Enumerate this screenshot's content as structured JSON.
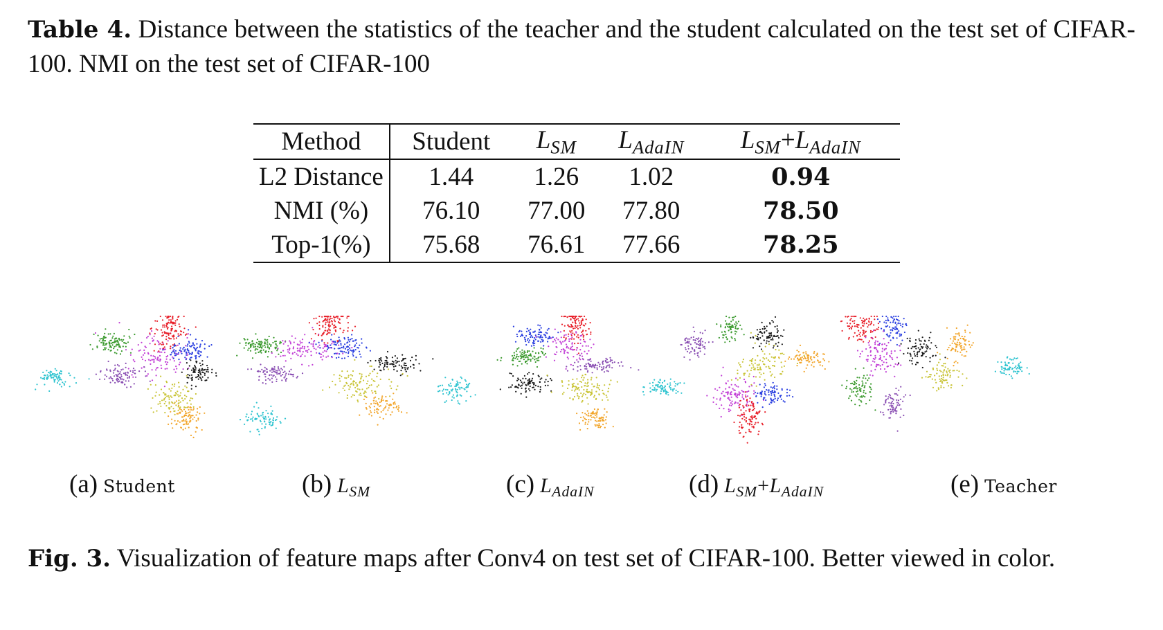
{
  "table_caption": {
    "label": "Table 4.",
    "text": "Distance between the statistics of the teacher and the student calculated on the test set of CIFAR-100. NMI on the test set of CIFAR-100"
  },
  "table": {
    "headers": [
      "Method",
      "Student",
      "LSM",
      "LAdaIN",
      "LSM+LAdaIN"
    ],
    "header_parts": {
      "lsm": {
        "base": "L",
        "sub": "SM"
      },
      "ladain": {
        "base": "L",
        "sub": "AdaIN"
      },
      "plus": "+"
    },
    "rows": [
      {
        "label": "L2 Distance",
        "values": [
          "1.44",
          "1.26",
          "1.02",
          "0.94"
        ]
      },
      {
        "label": "NMI (%)",
        "values": [
          "76.10",
          "77.00",
          "77.80",
          "78.50"
        ]
      },
      {
        "label": "Top-1(%)",
        "values": [
          "75.68",
          "76.61",
          "77.66",
          "78.25"
        ]
      }
    ]
  },
  "subfigures": [
    {
      "tag": "(a)",
      "name": "Student"
    },
    {
      "tag": "(b)",
      "name": "LSM"
    },
    {
      "tag": "(c)",
      "name": "LAdaIN"
    },
    {
      "tag": "(d)",
      "name": "LSM+LAdaIN"
    },
    {
      "tag": "(e)",
      "name": "Teacher"
    }
  ],
  "cluster_colors": {
    "cyan": "#2fc4d0",
    "green": "#3b9a2e",
    "magenta": "#c23fd6",
    "purple": "#8a4fb3",
    "red": "#e8212b",
    "blue": "#2a3fe0",
    "black": "#1a1a1a",
    "yellow": "#c9c437",
    "orange": "#f2a52a"
  },
  "fig_caption": {
    "label": "Fig. 3.",
    "text": "Visualization of feature maps after Conv4 on test set of CIFAR-100. Better viewed in color."
  }
}
